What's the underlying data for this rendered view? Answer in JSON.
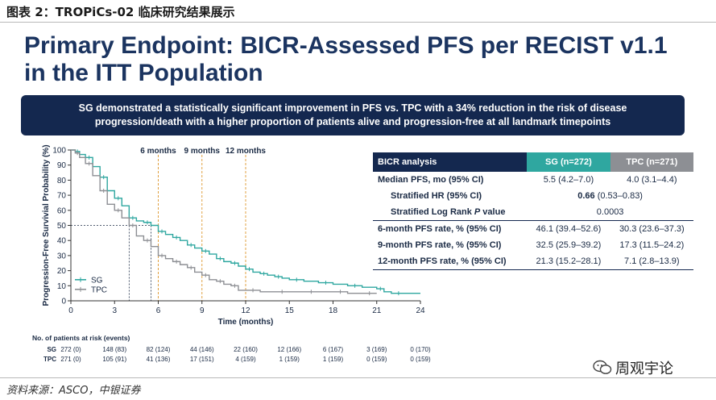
{
  "figure": {
    "caption": "图表 2：TROPiCs-02 临床研究结果展示",
    "source": "资料来源：ASCO，中银证券",
    "watermark": "周观宇论"
  },
  "slide": {
    "title_line1": "Primary Endpoint: BICR-Assessed PFS per RECIST v1.1",
    "title_line2": "in the ITT Population",
    "banner_line1": "SG demonstrated a statistically significant improvement in PFS vs. TPC with a 34% reduction in the risk of disease",
    "banner_line2": "progression/death with a higher proportion of patients alive and progression-free at all landmark timepoints"
  },
  "table": {
    "header": {
      "label": "BICR analysis",
      "sg": "SG (n=272)",
      "tpc": "TPC (n=271)"
    },
    "median": {
      "label": "Median PFS, mo (95% CI)",
      "sg": "5.5 (4.2–7.0)",
      "tpc": "4.0 (3.1–4.4)"
    },
    "hr": {
      "label": "Stratified HR (95% CI)",
      "bold": "0.66",
      "ci": " (0.53–0.83)"
    },
    "logrank": {
      "label_a": "Stratified Log Rank ",
      "label_p": "P",
      "label_b": " value",
      "value": "0.0003"
    },
    "m6": {
      "label": "6-month PFS rate, % (95% CI)",
      "sg": "46.1 (39.4–52.6)",
      "tpc": "30.3 (23.6–37.3)"
    },
    "m9": {
      "label": "9-month PFS rate, % (95% CI)",
      "sg": "32.5 (25.9–39.2)",
      "tpc": "17.3 (11.5–24.2)"
    },
    "m12": {
      "label": "12-month PFS rate, % (95% CI)",
      "sg": "21.3 (15.2–28.1)",
      "tpc": "7.1 (2.8–13.9)"
    }
  },
  "chart_data": {
    "type": "line",
    "title": "",
    "xlabel": "Time (months)",
    "ylabel": "Progression-Free Survivial Probability (%)",
    "xlim": [
      0,
      24
    ],
    "ylim": [
      0,
      100
    ],
    "x_ticks": [
      0,
      3,
      6,
      9,
      12,
      15,
      18,
      21,
      24
    ],
    "y_ticks": [
      0,
      10,
      20,
      30,
      40,
      50,
      60,
      70,
      80,
      90,
      100
    ],
    "landmarks": [
      {
        "x": 6,
        "label": "6 months"
      },
      {
        "x": 9,
        "label": "9 months"
      },
      {
        "x": 12,
        "label": "12 months"
      }
    ],
    "median_reference": {
      "y": 50,
      "sg_x": 5.5,
      "tpc_x": 4.0
    },
    "colors": {
      "sg": "#2fa7a0",
      "tpc": "#8d8f94",
      "landmark": "#e0a040",
      "ref": "#1a2a44",
      "axis": "#333333"
    },
    "series": [
      {
        "name": "SG",
        "color": "#2fa7a0",
        "x": [
          0,
          0.3,
          0.6,
          1.0,
          1.5,
          2.0,
          2.5,
          3.0,
          3.5,
          4.0,
          4.5,
          5.0,
          5.5,
          6.0,
          6.5,
          7.0,
          7.5,
          8.0,
          8.5,
          9.0,
          9.5,
          10.0,
          10.5,
          11.0,
          11.5,
          12.0,
          12.5,
          13.0,
          13.5,
          14.0,
          14.5,
          15.0,
          16.0,
          17.0,
          18.0,
          19.0,
          20.0,
          21.0,
          21.5,
          22.0,
          23.0,
          24.0
        ],
        "y": [
          100,
          99,
          97,
          95,
          89,
          82,
          73,
          68,
          63,
          55,
          53,
          52,
          50,
          46,
          44,
          42,
          40,
          37,
          35,
          33,
          31,
          28,
          26,
          25,
          23,
          21,
          19,
          18,
          17,
          16,
          15,
          14,
          13,
          12,
          11,
          10,
          9,
          8,
          6,
          5,
          5,
          5
        ]
      },
      {
        "name": "TPC",
        "color": "#8d8f94",
        "x": [
          0,
          0.3,
          0.6,
          1.0,
          1.5,
          2.0,
          2.5,
          3.0,
          3.5,
          4.0,
          4.5,
          5.0,
          5.5,
          6.0,
          6.5,
          7.0,
          7.5,
          8.0,
          8.5,
          9.0,
          9.5,
          10.0,
          10.5,
          11.0,
          11.5,
          12.0,
          13.0,
          14.0,
          15.0,
          16.0,
          17.0,
          18.0,
          19.0,
          20.0,
          21.0
        ],
        "y": [
          100,
          98,
          95,
          91,
          83,
          73,
          64,
          60,
          55,
          50,
          43,
          40,
          36,
          30,
          28,
          26,
          24,
          22,
          19,
          17,
          14,
          13,
          11,
          10,
          7,
          7,
          6,
          6,
          6,
          6,
          6,
          6,
          5,
          5,
          5
        ]
      }
    ],
    "at_risk": {
      "title": "No. of patients at risk (events)",
      "rows": [
        {
          "name": "SG",
          "values": [
            "272 (0)",
            "148 (83)",
            "82 (124)",
            "44 (146)",
            "22 (160)",
            "12 (166)",
            "6 (167)",
            "3 (169)",
            "0 (170)"
          ]
        },
        {
          "name": "TPC",
          "values": [
            "271 (0)",
            "105 (91)",
            "41 (136)",
            "17 (151)",
            "4 (159)",
            "1 (159)",
            "1 (159)",
            "0 (159)",
            "0 (159)"
          ]
        }
      ]
    }
  }
}
